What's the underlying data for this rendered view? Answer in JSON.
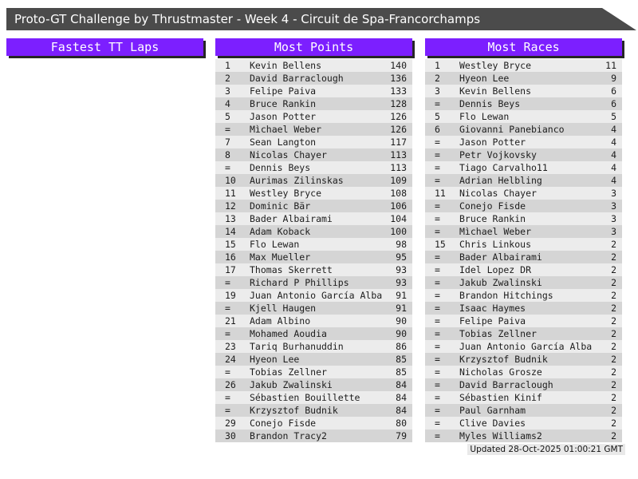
{
  "header": {
    "title": "Proto-GT Challenge by Thrustmaster - Week 4 - Circuit de Spa-Francorchamps"
  },
  "colors": {
    "accent_purple": "#7c1fff",
    "title_bar_gray": "#4b4b4b",
    "row_stripe_light": "#ececec",
    "row_stripe_dark": "#d5d5d5"
  },
  "columns": [
    {
      "title": "Fastest TT Laps",
      "rows": []
    },
    {
      "title": "Most Points",
      "rows": [
        [
          "1",
          "Kevin Bellens",
          "140"
        ],
        [
          "2",
          "David Barraclough",
          "136"
        ],
        [
          "3",
          "Felipe Paiva",
          "133"
        ],
        [
          "4",
          "Bruce Rankin",
          "128"
        ],
        [
          "5",
          "Jason Potter",
          "126"
        ],
        [
          "=",
          "Mìchael Weber",
          "126"
        ],
        [
          "7",
          "Sean Langton",
          "117"
        ],
        [
          "8",
          "Nicolas Chayer",
          "113"
        ],
        [
          "=",
          "Dennis Beys",
          "113"
        ],
        [
          "10",
          "Aurimas Zilinskas",
          "109"
        ],
        [
          "11",
          "Westley Bryce",
          "108"
        ],
        [
          "12",
          "Dominic Bär",
          "106"
        ],
        [
          "13",
          "Bader Albairami",
          "104"
        ],
        [
          "14",
          "Adam Koback",
          "100"
        ],
        [
          "15",
          "Flo Lewan",
          "98"
        ],
        [
          "16",
          "Max Mueller",
          "95"
        ],
        [
          "17",
          "Thomas Skerrett",
          "93"
        ],
        [
          "=",
          "Richard P Phillips",
          "93"
        ],
        [
          "19",
          "Juan Antonio García Alba",
          "91"
        ],
        [
          "=",
          "Kjell Haugen",
          "91"
        ],
        [
          "21",
          "Adam Albino",
          "90"
        ],
        [
          "=",
          "Mohamed Aoudia",
          "90"
        ],
        [
          "23",
          "Tariq Burhanuddin",
          "86"
        ],
        [
          "24",
          "Hyeon Lee",
          "85"
        ],
        [
          "=",
          "Tobias Zellner",
          "85"
        ],
        [
          "26",
          "Jakub Zwalinski",
          "84"
        ],
        [
          "=",
          "Sébastien Bouillette",
          "84"
        ],
        [
          "=",
          "Krzysztof Budnik",
          "84"
        ],
        [
          "29",
          "Conejo Fisde",
          "80"
        ],
        [
          "30",
          "Brandon Tracy2",
          "79"
        ]
      ]
    },
    {
      "title": "Most Races",
      "rows": [
        [
          "1",
          "Westley Bryce",
          "11"
        ],
        [
          "2",
          "Hyeon Lee",
          "9"
        ],
        [
          "3",
          "Kevin Bellens",
          "6"
        ],
        [
          "=",
          "Dennis Beys",
          "6"
        ],
        [
          "5",
          "Flo Lewan",
          "5"
        ],
        [
          "6",
          "Giovanni Panebianco",
          "4"
        ],
        [
          "=",
          "Jason Potter",
          "4"
        ],
        [
          "=",
          "Petr Vojkovsky",
          "4"
        ],
        [
          "=",
          "Tiago Carvalho11",
          "4"
        ],
        [
          "=",
          "Adrian Helbling",
          "4"
        ],
        [
          "11",
          "Nicolas Chayer",
          "3"
        ],
        [
          "=",
          "Conejo Fisde",
          "3"
        ],
        [
          "=",
          "Bruce Rankin",
          "3"
        ],
        [
          "=",
          "Mìchael Weber",
          "3"
        ],
        [
          "15",
          "Chris Linkous",
          "2"
        ],
        [
          "=",
          "Bader Albairami",
          "2"
        ],
        [
          "=",
          "Idel Lopez DR",
          "2"
        ],
        [
          "=",
          "Jakub Zwalinski",
          "2"
        ],
        [
          "=",
          "Brandon Hitchings",
          "2"
        ],
        [
          "=",
          "Isaac Haymes",
          "2"
        ],
        [
          "=",
          "Felipe Paiva",
          "2"
        ],
        [
          "=",
          "Tobias Zellner",
          "2"
        ],
        [
          "=",
          "Juan Antonio García Alba",
          "2"
        ],
        [
          "=",
          "Krzysztof Budnik",
          "2"
        ],
        [
          "=",
          "Nicholas Grosze",
          "2"
        ],
        [
          "=",
          "David Barraclough",
          "2"
        ],
        [
          "=",
          "Sébastien Kinif",
          "2"
        ],
        [
          "=",
          "Paul Garnham",
          "2"
        ],
        [
          "=",
          "Clive Davies",
          "2"
        ],
        [
          "=",
          "Myles Williams2",
          "2"
        ]
      ]
    }
  ],
  "footer": {
    "updated": "Updated 28-Oct-2025 01:00:21 GMT"
  }
}
